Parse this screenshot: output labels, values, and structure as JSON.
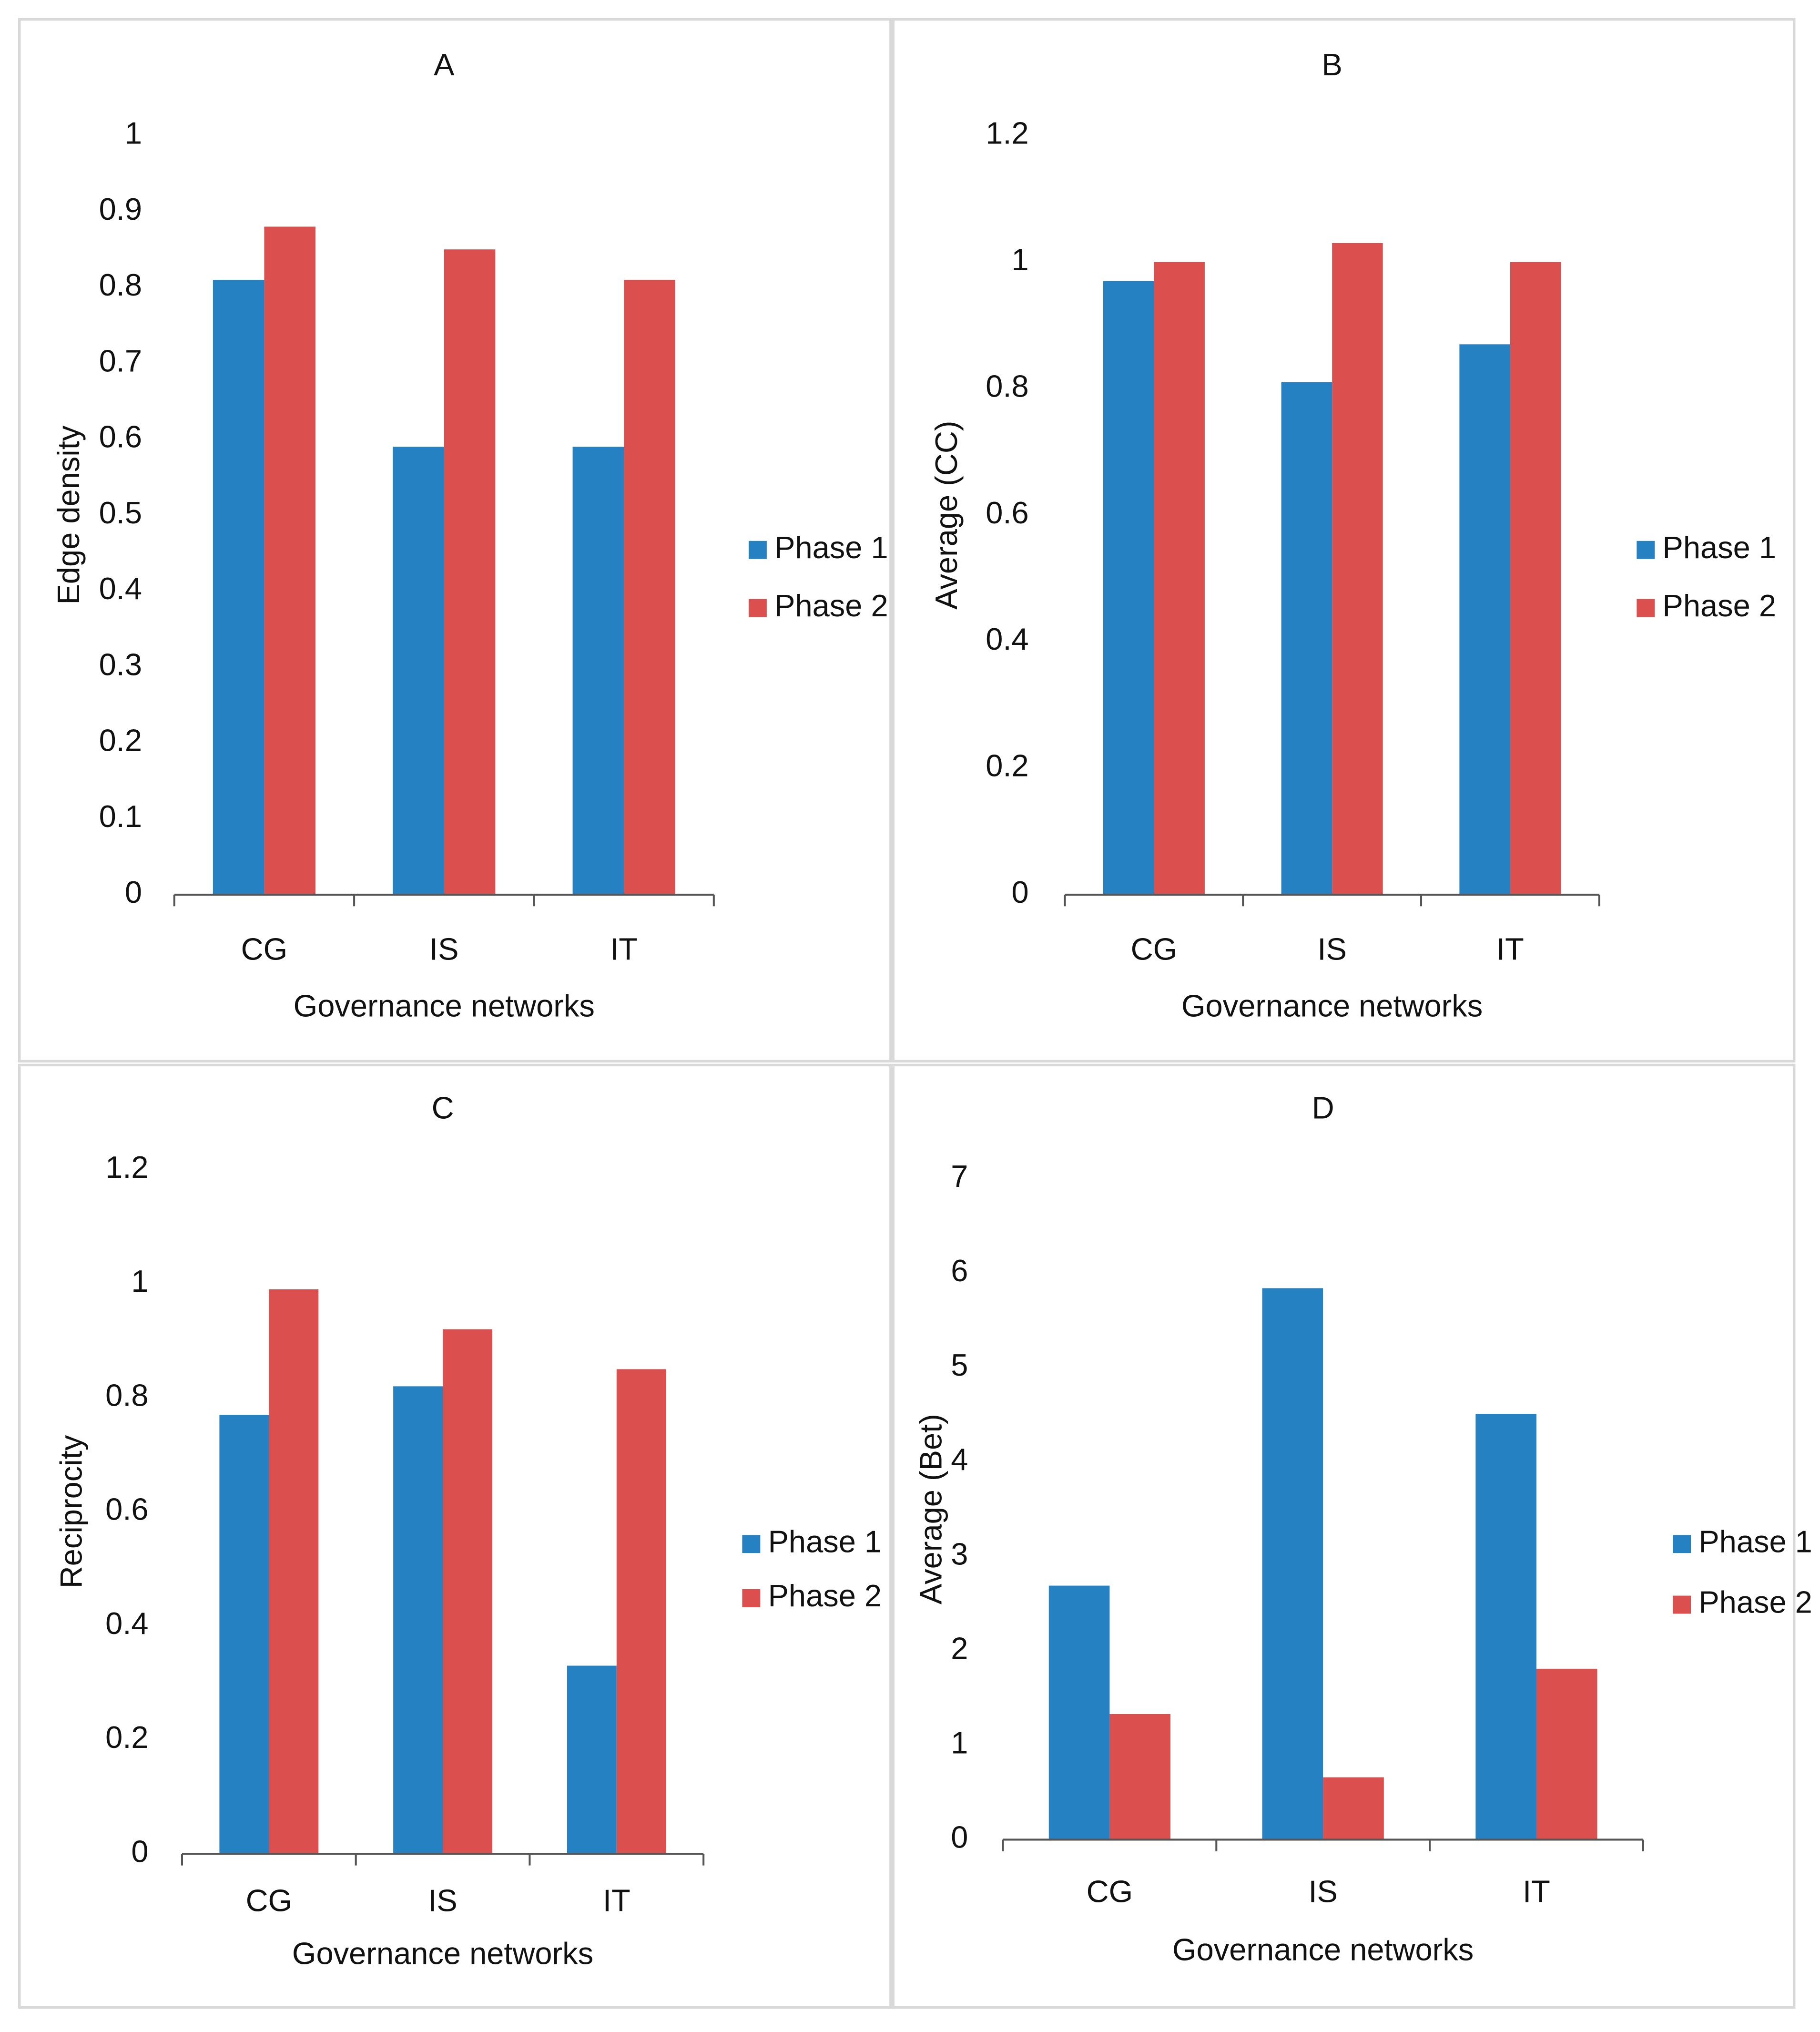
{
  "chart_data": [
    {
      "type": "bar",
      "title": "A",
      "y_label": "Edge density",
      "x_label": "Governance networks",
      "categories": [
        "CG",
        "IS",
        "IT"
      ],
      "series": [
        {
          "name": "Phase 1",
          "color": "#2681c2",
          "values": [
            0.81,
            0.59,
            0.59
          ]
        },
        {
          "name": "Phase 2",
          "color": "#dc4f4f",
          "values": [
            0.88,
            0.85,
            0.81
          ]
        }
      ],
      "ylim": [
        0,
        1
      ],
      "yticks": [
        0,
        0.1,
        0.2,
        0.3,
        0.4,
        0.5,
        0.6,
        0.7,
        0.8,
        0.9,
        1
      ],
      "grid": false,
      "legend": "right"
    },
    {
      "type": "bar",
      "title": "B",
      "y_label": "Average (CC)",
      "x_label": "Governance networks",
      "categories": [
        "CG",
        "IS",
        "IT"
      ],
      "series": [
        {
          "name": "Phase 1",
          "color": "#2681c2",
          "values": [
            0.97,
            0.81,
            0.87
          ]
        },
        {
          "name": "Phase 2",
          "color": "#dc4f4f",
          "values": [
            1.0,
            1.03,
            1.0
          ]
        }
      ],
      "ylim": [
        0,
        1.2
      ],
      "yticks": [
        0,
        0.2,
        0.4,
        0.6,
        0.8,
        1,
        1.2
      ],
      "grid": false,
      "legend": "right"
    },
    {
      "type": "bar",
      "title": "C",
      "y_label": "Reciprocity",
      "x_label": "Governance networks",
      "categories": [
        "CG",
        "IS",
        "IT"
      ],
      "series": [
        {
          "name": "Phase 1",
          "color": "#2681c2",
          "values": [
            0.77,
            0.82,
            0.33
          ]
        },
        {
          "name": "Phase 2",
          "color": "#dc4f4f",
          "values": [
            0.99,
            0.92,
            0.85
          ]
        }
      ],
      "ylim": [
        0,
        1.2
      ],
      "yticks": [
        0,
        0.2,
        0.4,
        0.6,
        0.8,
        1,
        1.2
      ],
      "grid": false,
      "legend": "right"
    },
    {
      "type": "bar",
      "title": "D",
      "y_label": "Average (Bet)",
      "x_label": "Governance networks",
      "categories": [
        "CG",
        "IS",
        "IT"
      ],
      "series": [
        {
          "name": "Phase 1",
          "color": "#2681c2",
          "values": [
            2.69,
            5.84,
            4.51
          ]
        },
        {
          "name": "Phase 2",
          "color": "#dc4f4f",
          "values": [
            1.33,
            0.66,
            1.81
          ]
        }
      ],
      "ylim": [
        0,
        7
      ],
      "yticks": [
        0,
        1,
        2,
        3,
        4,
        5,
        6,
        7
      ],
      "grid": false,
      "legend": "right"
    }
  ]
}
